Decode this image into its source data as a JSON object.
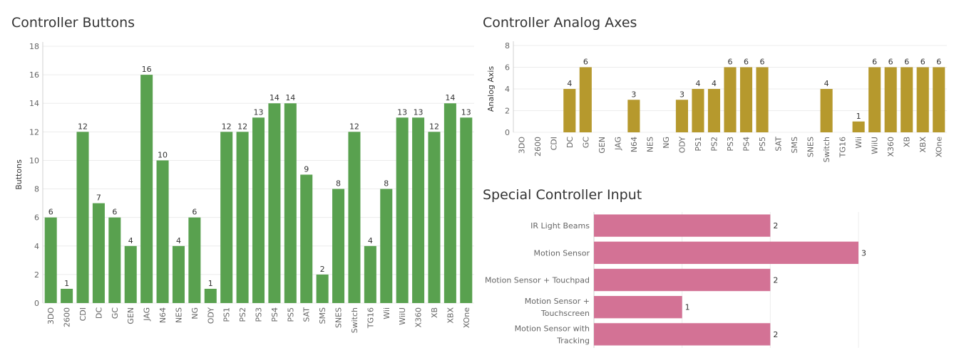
{
  "titles": {
    "buttons": "Controller Buttons",
    "analog": "Controller Analog Axes",
    "special": "Special Controller Input"
  },
  "colors": {
    "buttons": "#59a14f",
    "analog": "#b6992d",
    "special": "#d37295",
    "grid": "#ececec",
    "axis": "#d0d0d0",
    "text": "#333333",
    "tick": "#666666"
  },
  "chart_data": [
    {
      "type": "bar",
      "title": "Controller Buttons",
      "ylabel": "Buttons",
      "xlabel": "",
      "ylim": [
        0,
        18
      ],
      "yticks": [
        0,
        2,
        4,
        6,
        8,
        10,
        12,
        14,
        16,
        18
      ],
      "grid": true,
      "categories": [
        "3DO",
        "2600",
        "CDI",
        "DC",
        "GC",
        "GEN",
        "JAG",
        "N64",
        "NES",
        "NG",
        "ODY",
        "PS1",
        "PS2",
        "PS3",
        "PS4",
        "PS5",
        "SAT",
        "SMS",
        "SNES",
        "Switch",
        "TG16",
        "Wii",
        "WiiU",
        "X360",
        "XB",
        "XBX",
        "XOne"
      ],
      "values": [
        6,
        1,
        12,
        7,
        6,
        4,
        16,
        10,
        4,
        6,
        1,
        12,
        12,
        13,
        14,
        14,
        9,
        2,
        8,
        12,
        4,
        8,
        13,
        13,
        12,
        14,
        13
      ]
    },
    {
      "type": "bar",
      "title": "Controller Analog Axes",
      "ylabel": "Analog Axis",
      "xlabel": "",
      "ylim": [
        0,
        8
      ],
      "yticks": [
        0,
        2,
        4,
        6,
        8
      ],
      "grid": true,
      "categories": [
        "3DO",
        "2600",
        "CDI",
        "DC",
        "GC",
        "GEN",
        "JAG",
        "N64",
        "NES",
        "NG",
        "ODY",
        "PS1",
        "PS2",
        "PS3",
        "PS4",
        "PS5",
        "SAT",
        "SMS",
        "SNES",
        "Switch",
        "TG16",
        "Wii",
        "WiiU",
        "X360",
        "XB",
        "XBX",
        "XOne"
      ],
      "values": [
        null,
        null,
        null,
        4,
        6,
        null,
        null,
        3,
        null,
        null,
        3,
        4,
        4,
        6,
        6,
        6,
        null,
        null,
        null,
        4,
        null,
        1,
        6,
        6,
        6,
        6,
        6
      ]
    },
    {
      "type": "bar",
      "orientation": "horizontal",
      "title": "Special Controller Input",
      "xlabel": "",
      "ylabel": "",
      "xlim": [
        0,
        3
      ],
      "grid": true,
      "categories": [
        "IR Light Beams",
        "Motion Sensor",
        "Motion Sensor + Touchpad",
        "Motion Sensor + Touchscreen",
        "Motion Sensor with Tracking"
      ],
      "category_lines": [
        [
          "IR Light Beams"
        ],
        [
          "Motion Sensor"
        ],
        [
          "Motion Sensor + Touchpad"
        ],
        [
          "Motion Sensor +",
          "Touchscreen"
        ],
        [
          "Motion Sensor with",
          "Tracking"
        ]
      ],
      "values": [
        2,
        3,
        2,
        1,
        2
      ]
    }
  ]
}
